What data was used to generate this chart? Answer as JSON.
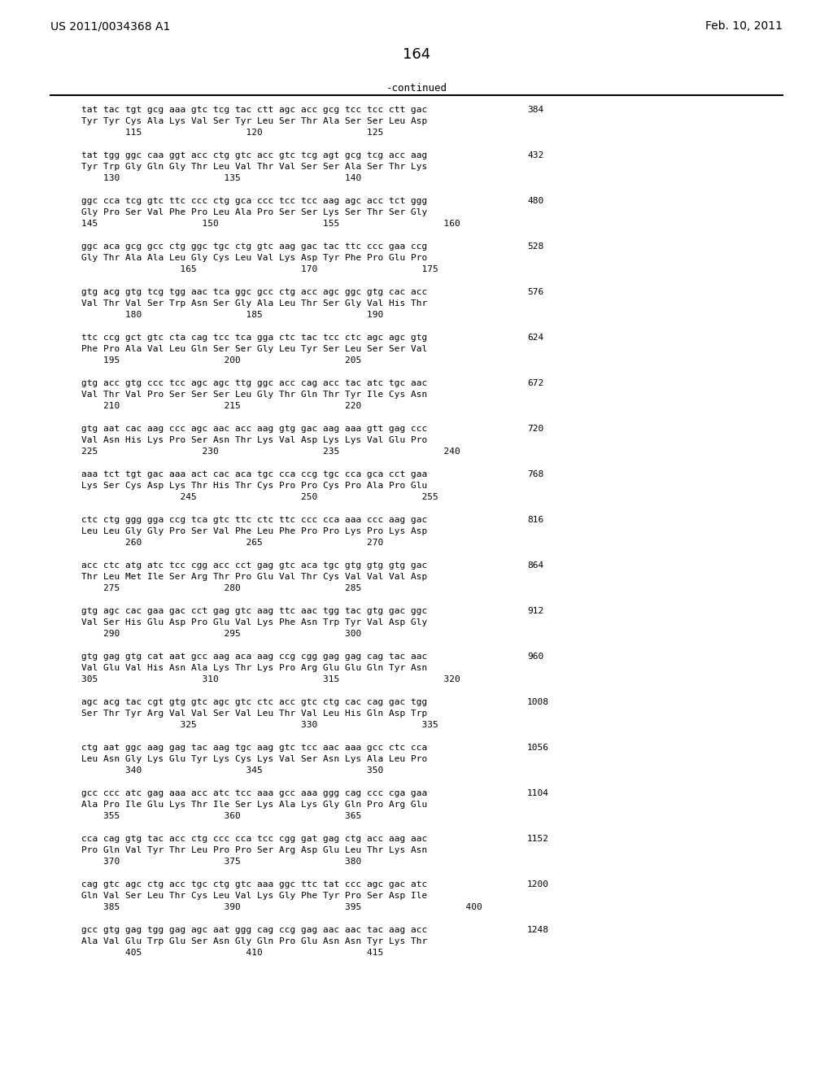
{
  "header_left": "US 2011/0034368 A1",
  "header_right": "Feb. 10, 2011",
  "page_number": "164",
  "continued_label": "-continued",
  "background_color": "#ffffff",
  "text_color": "#000000",
  "sequences": [
    {
      "dna": "tat tac tgt gcg aaa gtc tcg tac ctt agc acc gcg tcc tcc ctt gac",
      "protein": "Tyr Tyr Cys Ala Lys Val Ser Tyr Leu Ser Thr Ala Ser Ser Leu Asp",
      "numbers": "        115                   120                   125",
      "end_num": "384"
    },
    {
      "dna": "tat tgg ggc caa ggt acc ctg gtc acc gtc tcg agt gcg tcg acc aag",
      "protein": "Tyr Trp Gly Gln Gly Thr Leu Val Thr Val Ser Ser Ala Ser Thr Lys",
      "numbers": "    130                   135                   140",
      "end_num": "432"
    },
    {
      "dna": "ggc cca tcg gtc ttc ccc ctg gca ccc tcc tcc aag agc acc tct ggg",
      "protein": "Gly Pro Ser Val Phe Pro Leu Ala Pro Ser Ser Lys Ser Thr Ser Gly",
      "numbers": "145                   150                   155                   160",
      "end_num": "480"
    },
    {
      "dna": "ggc aca gcg gcc ctg ggc tgc ctg gtc aag gac tac ttc ccc gaa ccg",
      "protein": "Gly Thr Ala Ala Leu Gly Cys Leu Val Lys Asp Tyr Phe Pro Glu Pro",
      "numbers": "                  165                   170                   175",
      "end_num": "528"
    },
    {
      "dna": "gtg acg gtg tcg tgg aac tca ggc gcc ctg acc agc ggc gtg cac acc",
      "protein": "Val Thr Val Ser Trp Asn Ser Gly Ala Leu Thr Ser Gly Val His Thr",
      "numbers": "        180                   185                   190",
      "end_num": "576"
    },
    {
      "dna": "ttc ccg gct gtc cta cag tcc tca gga ctc tac tcc ctc agc agc gtg",
      "protein": "Phe Pro Ala Val Leu Gln Ser Ser Gly Leu Tyr Ser Leu Ser Ser Val",
      "numbers": "    195                   200                   205",
      "end_num": "624"
    },
    {
      "dna": "gtg acc gtg ccc tcc agc agc ttg ggc acc cag acc tac atc tgc aac",
      "protein": "Val Thr Val Pro Ser Ser Ser Leu Gly Thr Gln Thr Tyr Ile Cys Asn",
      "numbers": "    210                   215                   220",
      "end_num": "672"
    },
    {
      "dna": "gtg aat cac aag ccc agc aac acc aag gtg gac aag aaa gtt gag ccc",
      "protein": "Val Asn His Lys Pro Ser Asn Thr Lys Val Asp Lys Lys Val Glu Pro",
      "numbers": "225                   230                   235                   240",
      "end_num": "720"
    },
    {
      "dna": "aaa tct tgt gac aaa act cac aca tgc cca ccg tgc cca gca cct gaa",
      "protein": "Lys Ser Cys Asp Lys Thr His Thr Cys Pro Pro Cys Pro Ala Pro Glu",
      "numbers": "                  245                   250                   255",
      "end_num": "768"
    },
    {
      "dna": "ctc ctg ggg gga ccg tca gtc ttc ctc ttc ccc cca aaa ccc aag gac",
      "protein": "Leu Leu Gly Gly Pro Ser Val Phe Leu Phe Pro Pro Lys Pro Lys Asp",
      "numbers": "        260                   265                   270",
      "end_num": "816"
    },
    {
      "dna": "acc ctc atg atc tcc cgg acc cct gag gtc aca tgc gtg gtg gtg gac",
      "protein": "Thr Leu Met Ile Ser Arg Thr Pro Glu Val Thr Cys Val Val Val Asp",
      "numbers": "    275                   280                   285",
      "end_num": "864"
    },
    {
      "dna": "gtg agc cac gaa gac cct gag gtc aag ttc aac tgg tac gtg gac ggc",
      "protein": "Val Ser His Glu Asp Pro Glu Val Lys Phe Asn Trp Tyr Val Asp Gly",
      "numbers": "    290                   295                   300",
      "end_num": "912"
    },
    {
      "dna": "gtg gag gtg cat aat gcc aag aca aag ccg cgg gag gag cag tac aac",
      "protein": "Val Glu Val His Asn Ala Lys Thr Lys Pro Arg Glu Glu Gln Tyr Asn",
      "numbers": "305                   310                   315                   320",
      "end_num": "960"
    },
    {
      "dna": "agc acg tac cgt gtg gtc agc gtc ctc acc gtc ctg cac cag gac tgg",
      "protein": "Ser Thr Tyr Arg Val Val Ser Val Leu Thr Val Leu His Gln Asp Trp",
      "numbers": "                  325                   330                   335",
      "end_num": "1008"
    },
    {
      "dna": "ctg aat ggc aag gag tac aag tgc aag gtc tcc aac aaa gcc ctc cca",
      "protein": "Leu Asn Gly Lys Glu Tyr Lys Cys Lys Val Ser Asn Lys Ala Leu Pro",
      "numbers": "        340                   345                   350",
      "end_num": "1056"
    },
    {
      "dna": "gcc ccc atc gag aaa acc atc tcc aaa gcc aaa ggg cag ccc cga gaa",
      "protein": "Ala Pro Ile Glu Lys Thr Ile Ser Lys Ala Lys Gly Gln Pro Arg Glu",
      "numbers": "    355                   360                   365",
      "end_num": "1104"
    },
    {
      "dna": "cca cag gtg tac acc ctg ccc cca tcc cgg gat gag ctg acc aag aac",
      "protein": "Pro Gln Val Tyr Thr Leu Pro Pro Ser Arg Asp Glu Leu Thr Lys Asn",
      "numbers": "    370                   375                   380",
      "end_num": "1152"
    },
    {
      "dna": "cag gtc agc ctg acc tgc ctg gtc aaa ggc ttc tat ccc agc gac atc",
      "protein": "Gln Val Ser Leu Thr Cys Leu Val Lys Gly Phe Tyr Pro Ser Asp Ile",
      "numbers": "    385                   390                   395                   400",
      "end_num": "1200"
    },
    {
      "dna": "gcc gtg gag tgg gag agc aat ggg cag ccg gag aac aac tac aag acc",
      "protein": "Ala Val Glu Trp Glu Ser Asn Gly Gln Pro Glu Asn Asn Tyr Lys Thr",
      "numbers": "        405                   410                   415",
      "end_num": "1248"
    }
  ]
}
